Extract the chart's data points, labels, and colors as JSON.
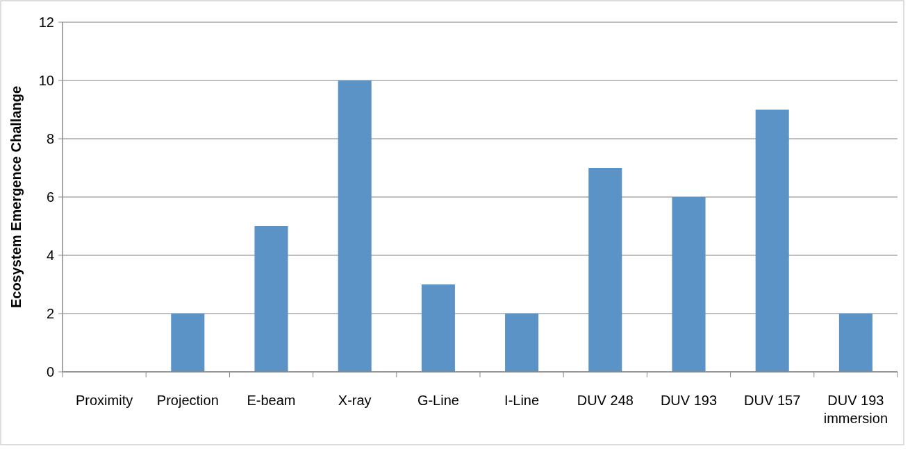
{
  "chart_data": {
    "type": "bar",
    "ylabel": "Ecosystem Emergence  Challange",
    "categories": [
      "Proximity",
      "Projection",
      "E-beam",
      "X-ray",
      "G-Line",
      "I-Line",
      "DUV 248",
      "DUV 193",
      "DUV 157",
      "DUV 193 immersion"
    ],
    "values": [
      0,
      2,
      5,
      10,
      3,
      2,
      7,
      6,
      9,
      2
    ],
    "color": "#5b93c7",
    "ylim": [
      0,
      12
    ],
    "yticks": [
      0,
      2,
      4,
      6,
      8,
      10,
      12
    ],
    "grid": "y"
  }
}
